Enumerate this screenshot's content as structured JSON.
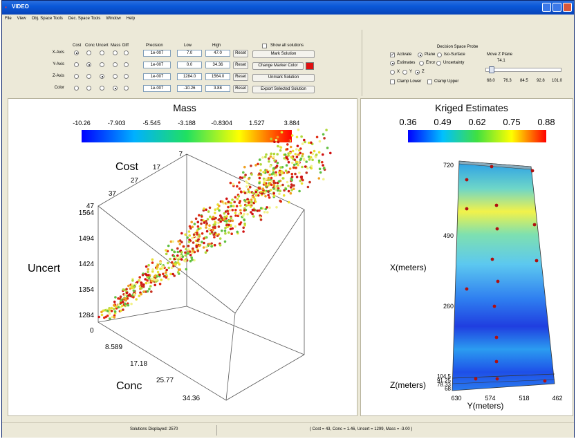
{
  "window": {
    "title": "VIDEO"
  },
  "menu": [
    "File",
    "View",
    "Obj. Space Tools",
    "Dec. Space Tools",
    "Window",
    "Help"
  ],
  "axis_panel": {
    "column_headers": [
      "Cost",
      "Conc",
      "Uncert",
      "Mass",
      "Diff",
      "Precision",
      "Low",
      "High"
    ],
    "rows": [
      {
        "label": "X-Axis",
        "selected": 0,
        "precision": "1e-007",
        "low": "7.0",
        "high": "47.0",
        "reset": "Reset"
      },
      {
        "label": "Y-Axis",
        "selected": 1,
        "precision": "1e-007",
        "low": "0.0",
        "high": "34.36",
        "reset": "Reset"
      },
      {
        "label": "Z-Axis",
        "selected": 2,
        "precision": "1e-007",
        "low": "1284.0",
        "high": "1564.0",
        "reset": "Reset"
      },
      {
        "label": "Color",
        "selected": 3,
        "precision": "1e-007",
        "low": "-10.26",
        "high": "3.88",
        "reset": "Reset"
      }
    ],
    "show_all_label": "Show all solutions",
    "show_all_checked": false,
    "mark_solution": "Mark Solution",
    "change_marker_color": "Change Marker Color",
    "marker_color": "#e01010",
    "unmark_solution": "Unmark Solution",
    "export_selected": "Export Selected Solution"
  },
  "probe_panel": {
    "title": "Decision Space Probe",
    "activate_label": "Activate",
    "activate_checked": true,
    "mode_options": [
      "Plane",
      "Iso-Surface"
    ],
    "mode_selected": "Plane",
    "move_label": "Move Z Plane",
    "move_value": "74.1",
    "data_options": [
      "Estimates",
      "Error",
      "Uncertainty"
    ],
    "data_selected": "Estimates",
    "axis_options": [
      "X",
      "Y",
      "Z"
    ],
    "axis_selected": "Z",
    "slider_ticks": [
      "68.0",
      "76.3",
      "84.5",
      "92.8",
      "101.0"
    ],
    "slider_fraction": 0.08,
    "clamp_lower": "Clamp Lower",
    "clamp_upper": "Clamp Upper",
    "clamp_lower_checked": false,
    "clamp_upper_checked": false
  },
  "left_view": {
    "colorbar_title": "Mass",
    "colorbar_ticks": [
      "-10.26",
      "-7.903",
      "-5.545",
      "-3.188",
      "-0.8304",
      "1.527",
      "3.884"
    ],
    "cost_axis_label": "Cost",
    "cost_ticks": [
      "7",
      "17",
      "27",
      "37",
      "47"
    ],
    "uncert_axis_label": "Uncert",
    "uncert_ticks": [
      "1564",
      "1494",
      "1424",
      "1354",
      "1284"
    ],
    "conc_axis_label": "Conc",
    "conc_ticks": [
      "0",
      "8.589",
      "17.18",
      "25.77",
      "34.36"
    ]
  },
  "right_view": {
    "colorbar_title": "Kriged Estimates",
    "colorbar_ticks": [
      "0.36",
      "0.49",
      "0.62",
      "0.75",
      "0.88"
    ],
    "x_axis_label": "X(meters)",
    "x_ticks": [
      "720",
      "490",
      "260"
    ],
    "y_axis_label": "Y(meters)",
    "y_ticks": [
      "630",
      "574",
      "518",
      "462"
    ],
    "z_axis_label": "Z(meters)",
    "z_ticks": [
      "104.5",
      "91.25",
      "78.33",
      "68"
    ]
  },
  "status": {
    "solutions_displayed": "Solutions Displayed: 2570",
    "selected_info": "( Cost = 43, Conc = 1.46, Uncert = 1299, Mass = -3.00 )"
  }
}
